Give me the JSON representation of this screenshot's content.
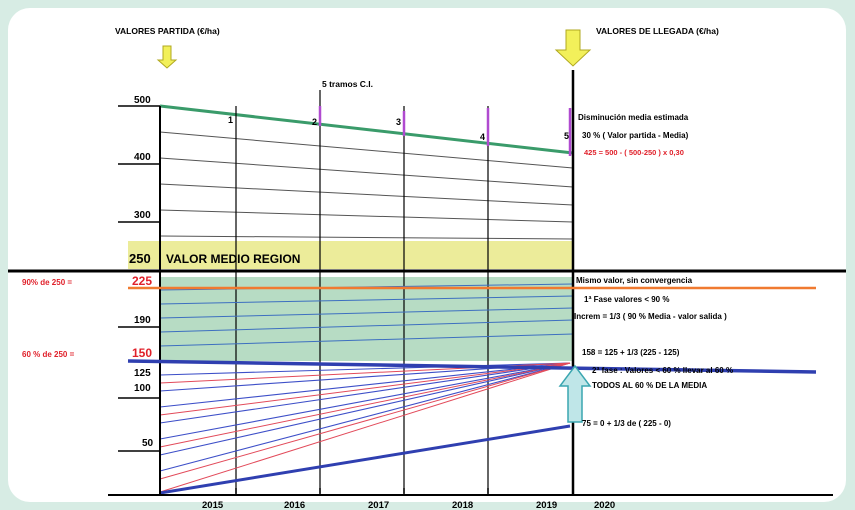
{
  "header": {
    "left_title": "VALORES PARTIDA (€/ha)",
    "right_title": "VALORES DE LLEGADA (€/ha)",
    "tramos_label": "5 tramos C.I."
  },
  "tramo_marks": [
    "1",
    "2",
    "3",
    "4",
    "5"
  ],
  "y_ticks": [
    "500",
    "400",
    "300",
    "250",
    "225",
    "190",
    "150",
    "125",
    "100",
    "50"
  ],
  "x_ticks": [
    "2015",
    "2016",
    "2017",
    "2018",
    "2019",
    "2020"
  ],
  "left_notes": {
    "p90": "90% de 250 =",
    "p60": "60 % de 250 ="
  },
  "band_label": "VALOR MEDIO REGION",
  "notes": {
    "decrease_title": "Disminución media estimada",
    "decrease_rule": "30 % ( Valor partida - Media)",
    "decrease_calc": "425 = 500 - ( 500-250 ) x 0,30",
    "same_value": "Mismo valor, sin convergencia",
    "phase1": "1ª Fase valores < 90 %",
    "phase1_rule": "Increm = 1/3 ( 90 % Media - valor salida )",
    "calc_158": "158 = 125 + 1/3 (225 - 125)",
    "phase2": "2ª fase : Valores < 60 % llevar al 60 %",
    "all60": "TODOS AL 60 % DE LA MEDIA",
    "calc_75": "75 = 0 + 1/3 de ( 225 - 0)"
  },
  "colors": {
    "background": "#d7ece4",
    "band_yellow": "#ecec9a",
    "band_green": "#b7dcc4",
    "arrow_yellow": "#f2f05a",
    "arrow_cyan": "#bfe6e8",
    "line_green": "#3a9b6a",
    "line_orange": "#f07a30",
    "line_blue": "#2f3fb0",
    "line_red": "#e24a5a",
    "text_red": "#e0202a",
    "mark_purple": "#b04ad0"
  }
}
